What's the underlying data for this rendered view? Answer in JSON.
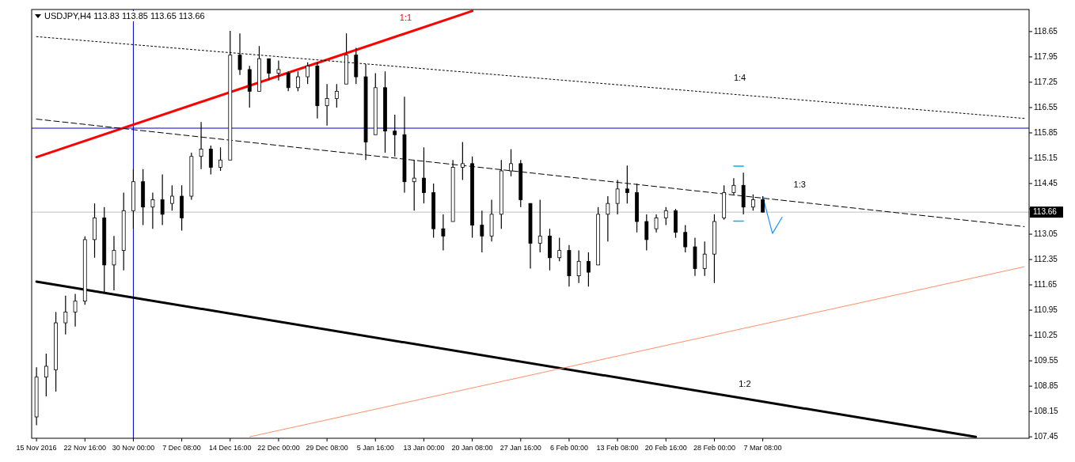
{
  "chart_data": {
    "type": "candlestick",
    "title": "USDJPY,H4  113.83 113.85 113.65 113.66",
    "color": "#000000",
    "categories": [
      "15 Nov 2016",
      null,
      null,
      null,
      null,
      "22 Nov 16:00",
      null,
      null,
      null,
      null,
      "30 Nov 00:00",
      null,
      null,
      null,
      null,
      "7 Dec 08:00",
      null,
      null,
      null,
      null,
      "14 Dec 16:00",
      null,
      null,
      null,
      null,
      "22 Dec 00:00",
      null,
      null,
      null,
      null,
      "29 Dec 08:00",
      null,
      null,
      null,
      null,
      "5 Jan 16:00",
      null,
      null,
      null,
      null,
      "13 Jan 00:00",
      null,
      null,
      null,
      null,
      "20 Jan 08:00",
      null,
      null,
      null,
      null,
      "27 Jan 16:00",
      null,
      null,
      null,
      null,
      "6 Feb 00:00",
      null,
      null,
      null,
      null,
      "13 Feb 08:00",
      null,
      null,
      null,
      null,
      "20 Feb 16:00",
      null,
      null,
      null,
      null,
      "28 Feb 00:00",
      null,
      null,
      null,
      null,
      "7 Mar 08:00",
      null,
      null,
      null,
      null,
      null,
      null,
      null,
      null,
      null,
      null,
      null,
      null,
      null,
      null,
      null,
      null,
      null,
      null,
      null,
      null,
      null,
      null,
      null,
      null,
      null,
      null,
      null
    ],
    "ohlc": [
      [
        108.0,
        109.37,
        107.77,
        109.1
      ],
      [
        109.1,
        109.75,
        108.57,
        109.4
      ],
      [
        109.3,
        110.9,
        108.7,
        110.6
      ],
      [
        110.6,
        111.35,
        110.28,
        110.9
      ],
      [
        110.9,
        111.4,
        110.5,
        111.2
      ],
      [
        111.2,
        112.99,
        111.1,
        112.9
      ],
      [
        112.9,
        113.9,
        112.4,
        113.5
      ],
      [
        113.5,
        113.8,
        111.45,
        112.2
      ],
      [
        112.2,
        113.0,
        111.5,
        112.6
      ],
      [
        112.6,
        114.2,
        112.05,
        113.7
      ],
      [
        113.7,
        114.85,
        113.2,
        114.5
      ],
      [
        114.5,
        114.85,
        113.3,
        113.8
      ],
      [
        113.8,
        114.2,
        113.2,
        114.0
      ],
      [
        114.0,
        114.7,
        113.3,
        113.6
      ],
      [
        113.9,
        114.4,
        113.7,
        114.1
      ],
      [
        114.1,
        114.4,
        113.15,
        113.5
      ],
      [
        114.1,
        115.3,
        114.0,
        115.2
      ],
      [
        115.2,
        116.15,
        114.85,
        115.4
      ],
      [
        115.4,
        115.5,
        114.7,
        114.9
      ],
      [
        114.9,
        115.45,
        114.8,
        115.1
      ],
      [
        115.1,
        118.67,
        115.1,
        118.0
      ],
      [
        118.0,
        118.6,
        117.45,
        117.6
      ],
      [
        117.6,
        117.7,
        116.55,
        117.0
      ],
      [
        117.0,
        118.25,
        117.0,
        117.9
      ],
      [
        117.9,
        117.9,
        117.3,
        117.5
      ],
      [
        117.5,
        117.85,
        117.3,
        117.6
      ],
      [
        117.5,
        117.55,
        117.0,
        117.1
      ],
      [
        117.1,
        117.55,
        117.0,
        117.4
      ],
      [
        117.4,
        117.8,
        117.2,
        117.7
      ],
      [
        117.7,
        117.8,
        116.25,
        116.6
      ],
      [
        116.6,
        117.2,
        116.05,
        116.8
      ],
      [
        116.8,
        117.2,
        116.55,
        117.0
      ],
      [
        117.2,
        118.6,
        117.2,
        118.0
      ],
      [
        118.0,
        118.2,
        117.2,
        117.4
      ],
      [
        117.4,
        117.75,
        115.1,
        115.6
      ],
      [
        115.8,
        117.5,
        115.8,
        117.1
      ],
      [
        117.1,
        117.55,
        115.3,
        115.9
      ],
      [
        115.9,
        116.35,
        115.2,
        115.8
      ],
      [
        115.8,
        116.85,
        114.2,
        114.5
      ],
      [
        114.5,
        115.1,
        113.7,
        114.6
      ],
      [
        114.6,
        115.45,
        113.9,
        114.2
      ],
      [
        114.2,
        114.45,
        112.95,
        113.2
      ],
      [
        113.2,
        113.6,
        112.6,
        113.0
      ],
      [
        113.4,
        115.1,
        113.4,
        114.9
      ],
      [
        114.9,
        115.6,
        114.55,
        115.0
      ],
      [
        115.0,
        115.2,
        112.95,
        113.3
      ],
      [
        113.3,
        113.7,
        112.55,
        113.0
      ],
      [
        113.0,
        114.0,
        112.85,
        113.6
      ],
      [
        113.6,
        115.1,
        113.2,
        114.8
      ],
      [
        114.8,
        115.4,
        114.65,
        115.0
      ],
      [
        115.0,
        115.1,
        113.8,
        114.0
      ],
      [
        113.9,
        113.9,
        112.1,
        112.8
      ],
      [
        112.8,
        114.0,
        112.55,
        113.0
      ],
      [
        113.0,
        113.2,
        112.05,
        112.4
      ],
      [
        112.4,
        112.95,
        112.3,
        112.6
      ],
      [
        112.6,
        112.75,
        111.6,
        111.9
      ],
      [
        111.9,
        112.6,
        111.7,
        112.3
      ],
      [
        112.3,
        112.55,
        111.6,
        112.0
      ],
      [
        112.2,
        113.8,
        112.2,
        113.6
      ],
      [
        113.6,
        114.1,
        112.85,
        113.9
      ],
      [
        113.9,
        114.55,
        113.6,
        114.3
      ],
      [
        114.3,
        114.95,
        113.9,
        114.2
      ],
      [
        114.2,
        114.45,
        113.1,
        113.4
      ],
      [
        113.4,
        113.6,
        112.6,
        112.9
      ],
      [
        113.2,
        113.6,
        113.1,
        113.5
      ],
      [
        113.5,
        113.8,
        113.3,
        113.7
      ],
      [
        113.7,
        113.75,
        112.95,
        113.1
      ],
      [
        113.1,
        113.3,
        112.55,
        112.7
      ],
      [
        112.7,
        112.95,
        111.9,
        112.1
      ],
      [
        112.1,
        112.85,
        111.9,
        112.5
      ],
      [
        112.5,
        113.6,
        111.7,
        113.4
      ],
      [
        113.5,
        114.4,
        113.45,
        114.2
      ],
      [
        114.2,
        114.6,
        114.15,
        114.4
      ],
      [
        114.4,
        114.75,
        113.6,
        113.8
      ],
      [
        113.8,
        114.15,
        113.7,
        114.0
      ],
      [
        114.0,
        114.1,
        113.65,
        113.66
      ],
      null,
      null,
      null,
      null,
      null,
      null,
      null,
      null,
      null,
      null,
      null,
      null,
      null,
      null,
      null,
      null,
      null,
      null,
      null,
      null,
      null,
      null,
      null,
      null,
      null,
      null,
      null
    ],
    "series": [
      {
        "type": "line",
        "color": "#ff0000",
        "line_style": "solid",
        "values": [
          115.18,
          null,
          null,
          null,
          null,
          null,
          null,
          null,
          null,
          null,
          null,
          null,
          null,
          null,
          null,
          null,
          null,
          null,
          null,
          null,
          null,
          null,
          null,
          null,
          null,
          null,
          null,
          null,
          null,
          null,
          null,
          null,
          null,
          null,
          null,
          null,
          null,
          null,
          null,
          null,
          null,
          null,
          null,
          null,
          null,
          119.22,
          null,
          null,
          null,
          null,
          null,
          null,
          null,
          null,
          null,
          null,
          null,
          null,
          null,
          null,
          null,
          null,
          null,
          null,
          null,
          null,
          null,
          null,
          null,
          null,
          null,
          null,
          null,
          null,
          null,
          null,
          null,
          null,
          null,
          null,
          null,
          null,
          null,
          null,
          null,
          null,
          null,
          null,
          null,
          null,
          null,
          null,
          null,
          null,
          null,
          null,
          null,
          null,
          null,
          null,
          null,
          null,
          null
        ]
      },
      {
        "type": "line",
        "color": "#000000",
        "line_style": "dotted",
        "values": [
          118.51,
          null,
          null,
          null,
          null,
          null,
          null,
          null,
          null,
          null,
          null,
          null,
          null,
          null,
          null,
          null,
          null,
          null,
          null,
          null,
          null,
          null,
          null,
          null,
          null,
          null,
          null,
          null,
          null,
          null,
          null,
          null,
          null,
          null,
          null,
          null,
          null,
          null,
          null,
          null,
          null,
          null,
          null,
          null,
          null,
          null,
          null,
          null,
          null,
          null,
          null,
          null,
          null,
          null,
          null,
          null,
          null,
          null,
          null,
          null,
          null,
          null,
          null,
          null,
          null,
          null,
          null,
          null,
          null,
          null,
          null,
          null,
          null,
          null,
          null,
          null,
          null,
          null,
          null,
          null,
          null,
          null,
          null,
          null,
          null,
          null,
          null,
          null,
          null,
          null,
          null,
          null,
          null,
          null,
          null,
          null,
          null,
          null,
          null,
          null,
          null,
          null,
          116.25
        ]
      },
      {
        "type": "line",
        "color": "#000000",
        "line_style": "dashed",
        "values": [
          116.23,
          null,
          null,
          null,
          null,
          null,
          null,
          null,
          null,
          null,
          null,
          null,
          null,
          null,
          null,
          null,
          null,
          null,
          null,
          null,
          null,
          null,
          null,
          null,
          null,
          null,
          null,
          null,
          null,
          null,
          null,
          null,
          null,
          null,
          null,
          null,
          null,
          null,
          null,
          null,
          null,
          null,
          null,
          null,
          null,
          null,
          null,
          null,
          null,
          null,
          null,
          null,
          null,
          null,
          null,
          null,
          null,
          null,
          null,
          null,
          null,
          null,
          null,
          null,
          null,
          null,
          null,
          null,
          null,
          null,
          null,
          null,
          null,
          null,
          null,
          null,
          null,
          null,
          null,
          null,
          null,
          null,
          null,
          null,
          null,
          null,
          null,
          null,
          null,
          null,
          null,
          null,
          null,
          null,
          null,
          null,
          null,
          null,
          null,
          null,
          null,
          null,
          113.26
        ]
      },
      {
        "type": "line",
        "color": "#000000",
        "line_style": "solid",
        "values": [
          111.74,
          null,
          null,
          null,
          null,
          null,
          null,
          null,
          null,
          null,
          null,
          null,
          null,
          null,
          null,
          null,
          null,
          null,
          null,
          null,
          null,
          null,
          null,
          null,
          null,
          null,
          null,
          null,
          null,
          null,
          null,
          null,
          null,
          null,
          null,
          null,
          null,
          null,
          null,
          null,
          null,
          null,
          null,
          null,
          null,
          null,
          null,
          null,
          null,
          null,
          null,
          null,
          null,
          null,
          null,
          null,
          null,
          null,
          null,
          null,
          null,
          null,
          null,
          null,
          null,
          null,
          null,
          null,
          null,
          null,
          null,
          null,
          null,
          null,
          null,
          null,
          null,
          null,
          null,
          null,
          null,
          null,
          null,
          null,
          null,
          null,
          null,
          null,
          null,
          null,
          null,
          null,
          null,
          null,
          null,
          null,
          null,
          107.45,
          null,
          null,
          null,
          null,
          null
        ]
      },
      {
        "type": "line",
        "color": "#ff8f6b",
        "line_style": "solid",
        "values": [
          null,
          null,
          null,
          null,
          null,
          null,
          null,
          null,
          null,
          null,
          null,
          null,
          null,
          null,
          null,
          null,
          null,
          null,
          null,
          null,
          null,
          null,
          107.45,
          null,
          null,
          null,
          null,
          null,
          null,
          null,
          null,
          null,
          null,
          null,
          null,
          null,
          null,
          null,
          null,
          null,
          null,
          null,
          null,
          null,
          null,
          null,
          null,
          null,
          null,
          null,
          null,
          null,
          null,
          null,
          null,
          null,
          null,
          null,
          null,
          null,
          null,
          null,
          null,
          null,
          null,
          null,
          null,
          null,
          null,
          null,
          null,
          null,
          null,
          null,
          null,
          null,
          null,
          null,
          null,
          null,
          null,
          null,
          null,
          null,
          null,
          null,
          null,
          null,
          null,
          null,
          null,
          null,
          null,
          null,
          null,
          null,
          null,
          null,
          null,
          null,
          null,
          null,
          112.15
        ]
      },
      {
        "type": "line",
        "color": "#00b4f0",
        "line_style": "solid",
        "values": [
          null,
          null,
          null,
          null,
          null,
          null,
          null,
          null,
          null,
          null,
          null,
          null,
          null,
          null,
          null,
          null,
          null,
          null,
          null,
          null,
          null,
          null,
          null,
          null,
          null,
          null,
          null,
          null,
          null,
          null,
          null,
          null,
          null,
          null,
          null,
          null,
          null,
          null,
          null,
          null,
          null,
          null,
          null,
          null,
          null,
          null,
          null,
          null,
          null,
          null,
          null,
          null,
          null,
          null,
          null,
          null,
          null,
          null,
          null,
          null,
          null,
          null,
          null,
          null,
          null,
          null,
          null,
          null,
          null,
          null,
          null,
          null,
          114.93,
          114.93,
          null,
          null,
          null,
          null,
          null,
          null,
          null,
          null,
          null,
          null,
          null,
          null,
          null,
          null,
          null,
          null,
          null,
          null,
          null,
          null,
          null,
          null,
          null,
          null,
          null,
          null,
          null,
          null,
          null
        ]
      },
      {
        "type": "line",
        "color": "#00b4f0",
        "line_style": "solid",
        "values": [
          null,
          null,
          null,
          null,
          null,
          null,
          null,
          null,
          null,
          null,
          null,
          null,
          null,
          null,
          null,
          null,
          null,
          null,
          null,
          null,
          null,
          null,
          null,
          null,
          null,
          null,
          null,
          null,
          null,
          null,
          null,
          null,
          null,
          null,
          null,
          null,
          null,
          null,
          null,
          null,
          null,
          null,
          null,
          null,
          null,
          null,
          null,
          null,
          null,
          null,
          null,
          null,
          null,
          null,
          null,
          null,
          null,
          null,
          null,
          null,
          null,
          null,
          null,
          null,
          null,
          null,
          null,
          null,
          null,
          null,
          null,
          null,
          113.41,
          113.41,
          null,
          null,
          null,
          null,
          null,
          null,
          null,
          null,
          null,
          null,
          null,
          null,
          null,
          null,
          null,
          null,
          null,
          null,
          null,
          null,
          null,
          null,
          null,
          null,
          null,
          null,
          null,
          null,
          null
        ]
      },
      {
        "type": "line",
        "color": "#1e90ff",
        "line_style": "solid",
        "values": [
          null,
          null,
          null,
          null,
          null,
          null,
          null,
          null,
          null,
          null,
          null,
          null,
          null,
          null,
          null,
          null,
          null,
          null,
          null,
          null,
          null,
          null,
          null,
          null,
          null,
          null,
          null,
          null,
          null,
          null,
          null,
          null,
          null,
          null,
          null,
          null,
          null,
          null,
          null,
          null,
          null,
          null,
          null,
          null,
          null,
          null,
          null,
          null,
          null,
          null,
          null,
          null,
          null,
          null,
          null,
          null,
          null,
          null,
          null,
          null,
          null,
          null,
          null,
          null,
          null,
          null,
          null,
          null,
          null,
          null,
          null,
          null,
          null,
          null,
          null,
          114.09,
          113.07,
          113.52,
          null,
          null,
          null,
          null,
          null,
          null,
          null,
          null,
          null,
          null,
          null,
          null,
          null,
          null,
          null,
          null,
          null,
          null,
          null,
          null,
          null,
          null,
          null,
          null,
          null
        ]
      }
    ],
    "ref_lines": [
      {
        "axis": "y",
        "value": 115.98,
        "color": "#0000cc"
      },
      {
        "axis": "x",
        "value": "30 Nov 00:00",
        "color": "#0000cc"
      },
      {
        "axis": "y",
        "value": 113.66,
        "label": "113.66",
        "color": "#c0c0c0"
      }
    ],
    "annotations": [
      "1:1",
      "1:4",
      "1:3",
      "1:2"
    ],
    "ylim": [
      107.41,
      119.26
    ],
    "yticks": [
      107.45,
      108.15,
      108.85,
      109.55,
      110.25,
      110.95,
      111.65,
      112.35,
      113.05,
      {
        "value": 113.75,
        "label": null
      },
      114.45,
      115.15,
      115.85,
      116.55,
      117.25,
      117.95,
      118.65
    ]
  }
}
